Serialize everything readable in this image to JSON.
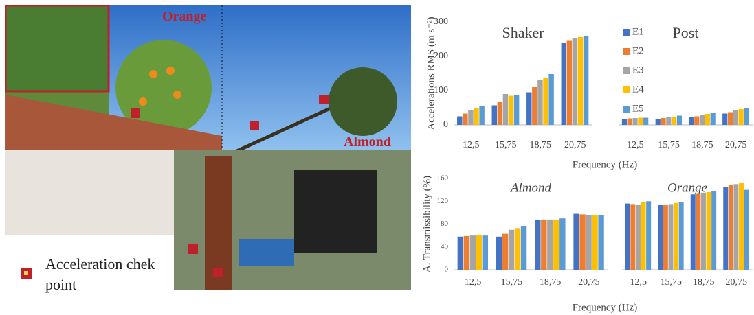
{
  "photos": {
    "labels": [
      "Orange",
      "Almond"
    ],
    "legend": "Acceleration chek point"
  },
  "chart_data": [
    {
      "type": "bar",
      "ylabel": "Accelerations RMS (m s⁻²)",
      "xlabel": "Frequency (Hz)",
      "ylim": [
        0,
        300
      ],
      "yticks": [
        0,
        100,
        200,
        300
      ],
      "panel_font_style": "normal",
      "panels": [
        {
          "title": "Shaker"
        },
        {
          "title": "Post"
        }
      ],
      "categories": [
        "12,5",
        "15,75",
        "18,75",
        "20,75",
        "12,5",
        "15,75",
        "18,75",
        "20,75"
      ],
      "series": [
        {
          "name": "E1",
          "color": "#4472c4",
          "values": [
            25,
            57,
            95,
            238,
            18,
            18,
            22,
            33
          ]
        },
        {
          "name": "E2",
          "color": "#ed7d31",
          "values": [
            33,
            68,
            110,
            245,
            19,
            20,
            25,
            37
          ]
        },
        {
          "name": "E3",
          "color": "#a5a5a5",
          "values": [
            42,
            90,
            130,
            252,
            20,
            22,
            30,
            42
          ]
        },
        {
          "name": "E4",
          "color": "#ffc000",
          "values": [
            50,
            85,
            137,
            256,
            21,
            24,
            32,
            46
          ]
        },
        {
          "name": "E5",
          "color": "#5b9bd5",
          "values": [
            55,
            88,
            148,
            258,
            21,
            27,
            35,
            48
          ]
        }
      ]
    },
    {
      "type": "bar",
      "ylabel": "A. Transmissibility (%)",
      "xlabel": "Frequency (Hz)",
      "ylim": [
        0,
        160
      ],
      "yticks": [
        0,
        40,
        80,
        120,
        160
      ],
      "panel_font_style": "italic",
      "panels": [
        {
          "title": "Almond"
        },
        {
          "title": "Orange"
        }
      ],
      "categories": [
        "12,5",
        "15,75",
        "18,75",
        "20,75",
        "12,5",
        "15,75",
        "18,75",
        "20,75"
      ],
      "series": [
        {
          "color": "#4472c4",
          "values": [
            58,
            58,
            87,
            98,
            116,
            114,
            132,
            145
          ]
        },
        {
          "color": "#ed7d31",
          "values": [
            59,
            63,
            88,
            97,
            115,
            113,
            134,
            148
          ]
        },
        {
          "color": "#a5a5a5",
          "values": [
            60,
            70,
            88,
            96,
            114,
            115,
            135,
            150
          ]
        },
        {
          "color": "#ffc000",
          "values": [
            61,
            73,
            87,
            95,
            118,
            117,
            136,
            152
          ]
        },
        {
          "color": "#5b9bd5",
          "values": [
            60,
            76,
            90,
            96,
            120,
            119,
            138,
            140
          ]
        }
      ]
    }
  ]
}
